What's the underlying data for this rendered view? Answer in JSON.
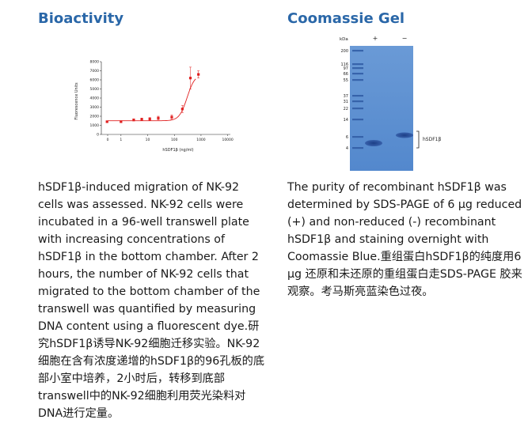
{
  "bioactivity": {
    "heading": "Bioactivity",
    "paragraph": "hSDF1β-induced migration of NK-92 cells was assessed. NK-92 cells were incubated in a 96-well transwell plate with increasing concentrations of hSDF1β in the bottom chamber. After 2 hours, the number of NK-92 cells that migrated to the bottom chamber of the transwell was quantified by measuring DNA content using a fluorescent dye.研究hSDF1β诱导NK-92细胞迁移实验。NK-92细胞在含有浓度递增的hSDF1β的96孔板的底部小室中培养，2小时后，转移到底部transwell中的NK-92细胞利用荧光染料对DNA进行定量。"
  },
  "gel": {
    "heading": "Coomassie Gel",
    "paragraph": "The purity of recombinant hSDF1β was determined by SDS-PAGE of 6 μg reduced (+) and non-reduced (-) recombinant hSDF1β and staining overnight with Coomassie Blue.重组蛋白hSDF1β的纯度用6 μg 还原和未还原的重组蛋白走SDS-PAGE 胶来观察。考马斯亮蓝染色过夜。",
    "kda_label": "kDa",
    "lane_labels": [
      "+",
      "−"
    ],
    "markers": [
      "200",
      "116",
      "97",
      "66",
      "55",
      "37",
      "31",
      "22",
      "14",
      "6",
      "4"
    ],
    "band_label": "hSDF1β",
    "gel_color": "#5b8fd1"
  },
  "chart_data": {
    "type": "scatter",
    "title": "",
    "xlabel": "hSDF1β (ng/ml)",
    "ylabel": "Fluorescence Units",
    "x_scale": "log",
    "x_tick_labels": [
      "0",
      "1",
      "10",
      "100",
      "1000",
      "10000"
    ],
    "y_tick_labels": [
      "0",
      "1000",
      "2000",
      "3000",
      "4000",
      "5000",
      "6000",
      "7000",
      "8000"
    ],
    "ylim": [
      0,
      8000
    ],
    "color": "#e02020",
    "points": [
      {
        "x": 0.3,
        "y": 1400,
        "err": 80
      },
      {
        "x": 1,
        "y": 1400,
        "err": 80
      },
      {
        "x": 3,
        "y": 1600,
        "err": 120
      },
      {
        "x": 6,
        "y": 1650,
        "err": 150
      },
      {
        "x": 12,
        "y": 1700,
        "err": 150
      },
      {
        "x": 25,
        "y": 1800,
        "err": 200
      },
      {
        "x": 80,
        "y": 1900,
        "err": 250
      },
      {
        "x": 200,
        "y": 2800,
        "err": 400
      },
      {
        "x": 400,
        "y": 6200,
        "err": 1200
      },
      {
        "x": 800,
        "y": 6600,
        "err": 400
      }
    ]
  }
}
